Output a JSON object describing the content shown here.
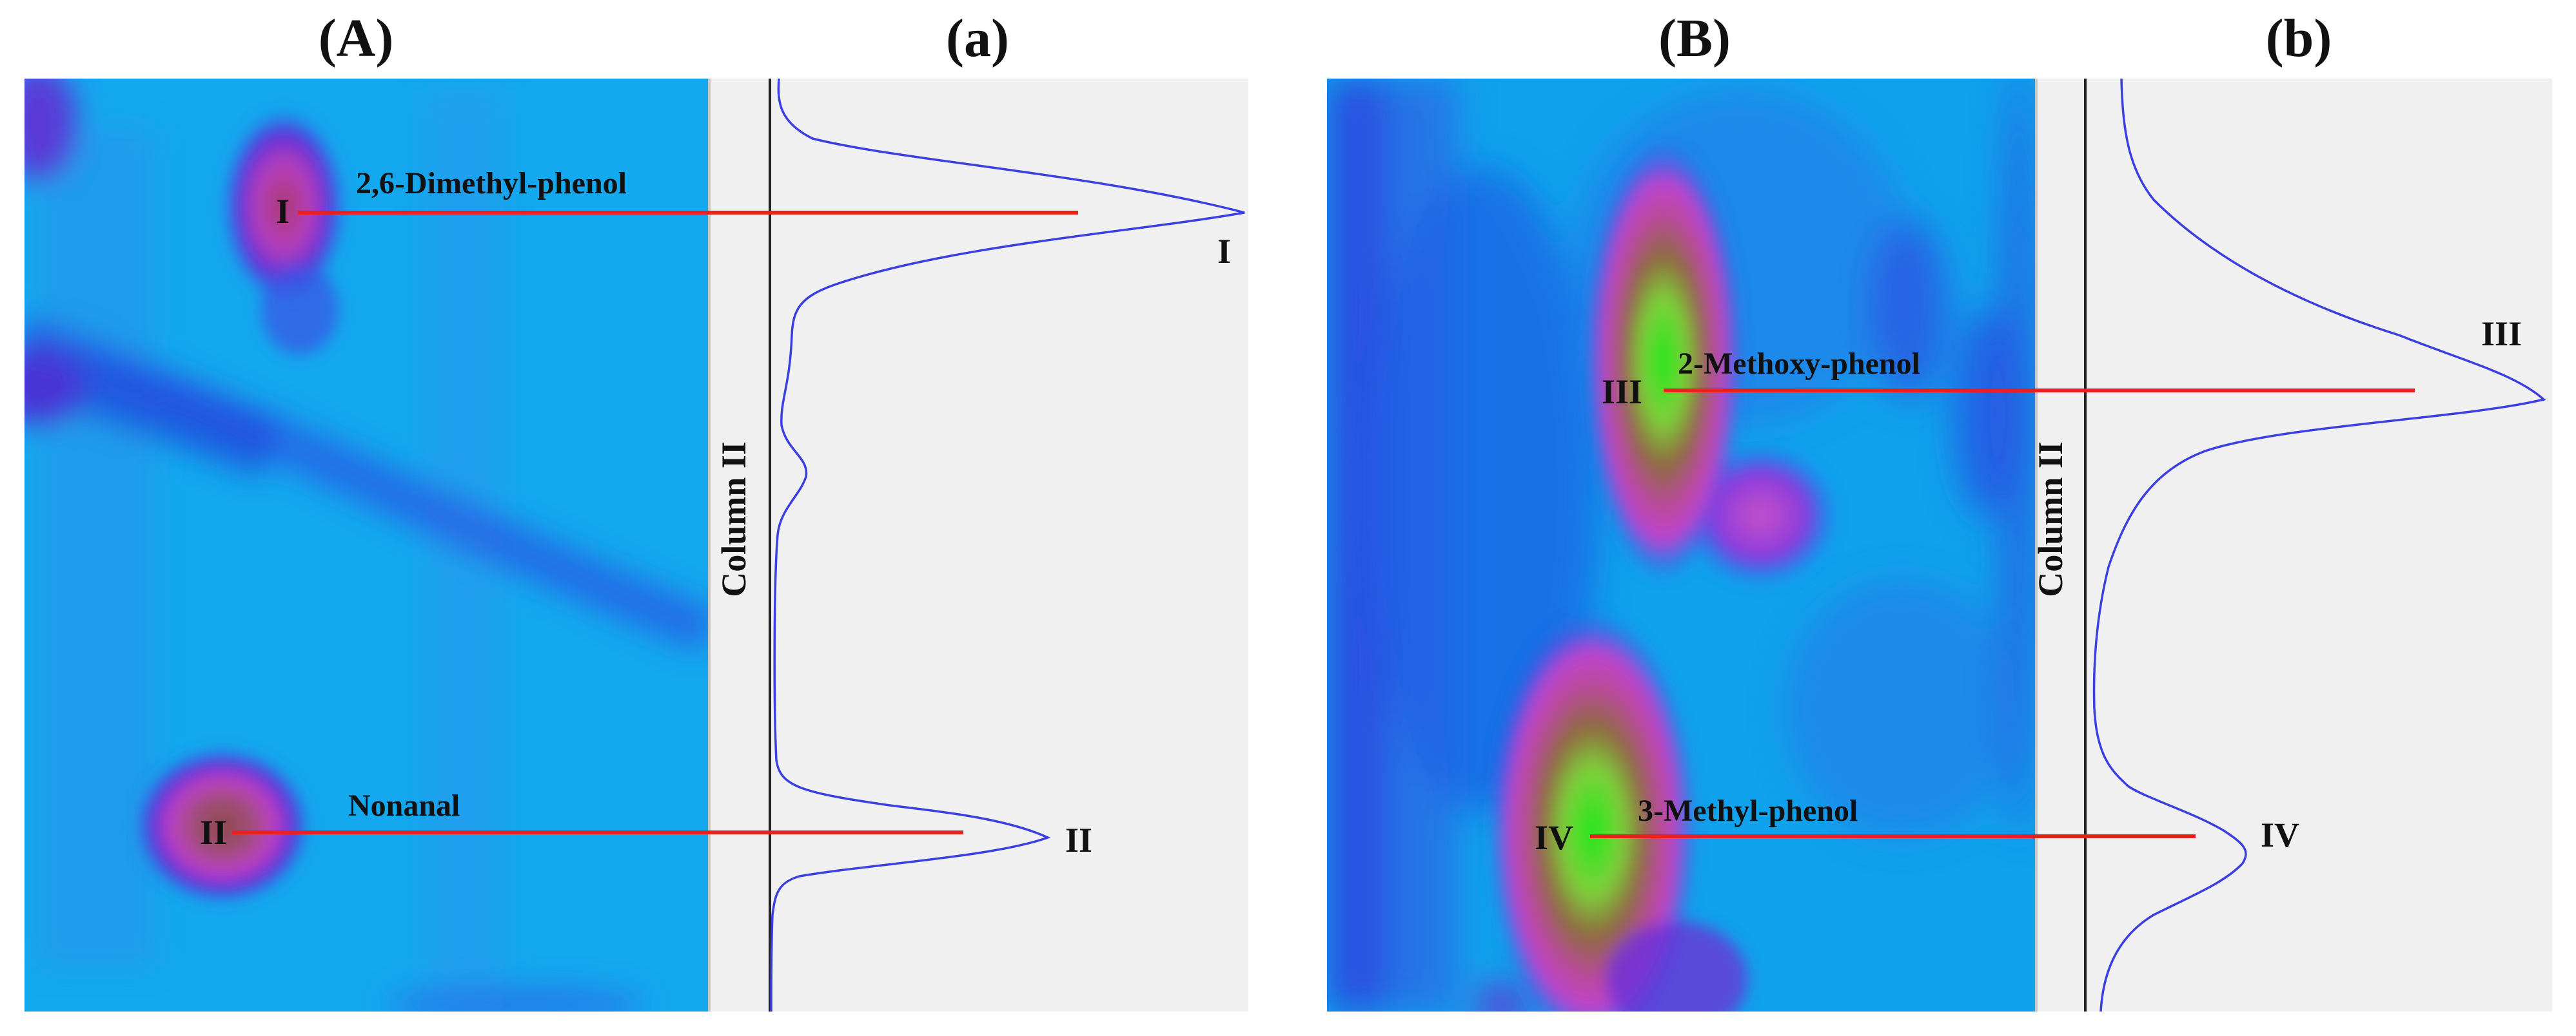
{
  "panel_titles": {
    "A": "(A)",
    "a": "(a)",
    "B": "(B)",
    "b": "(b)"
  },
  "chart_data": [
    {
      "panel": "A",
      "type": "heatmap",
      "title": "(A)",
      "annotations": [
        {
          "marker": "I",
          "compound": "2,6-Dimethyl-phenol"
        },
        {
          "marker": "II",
          "compound": "Nonanal"
        }
      ]
    },
    {
      "panel": "a",
      "type": "line",
      "title": "(a)",
      "ylabel": "Column II",
      "peaks": [
        {
          "label": "I",
          "relative_intensity": 1.0
        },
        {
          "label": "II",
          "relative_intensity": 0.58
        }
      ]
    },
    {
      "panel": "B",
      "type": "heatmap",
      "title": "(B)",
      "annotations": [
        {
          "marker": "III",
          "compound": "2-Methoxy-phenol"
        },
        {
          "marker": "IV",
          "compound": "3-Methyl-phenol"
        }
      ]
    },
    {
      "panel": "b",
      "type": "line",
      "title": "(b)",
      "ylabel": "Column II",
      "peaks": [
        {
          "label": "III",
          "relative_intensity": 1.0
        },
        {
          "label": "IV",
          "relative_intensity": 0.34
        }
      ]
    }
  ]
}
